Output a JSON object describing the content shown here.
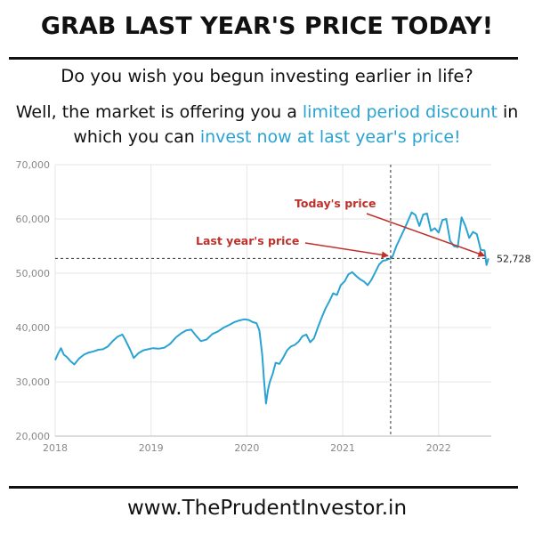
{
  "header": {
    "title": "GRAB LAST YEAR'S PRICE TODAY!",
    "subtitle": "Do you wish you begun investing earlier in life?",
    "intro": {
      "part1": "Well, the market is offering you a ",
      "highlight1": "limited period discount",
      "part2": " in which you can ",
      "highlight2": "invest now at last year's price!"
    }
  },
  "footer": {
    "url": "www.ThePrudentInvestor.in"
  },
  "colors": {
    "line": "#2aa3d2",
    "highlight": "#2aa3d2",
    "annotation": "#c0302a",
    "grid": "#e6e6e6",
    "axis_text": "#888888"
  },
  "chart_data": {
    "type": "line",
    "title": "",
    "xlabel": "",
    "ylabel": "",
    "xlim": [
      2018.0,
      2022.55
    ],
    "ylim": [
      20000,
      70000
    ],
    "x_ticks": [
      "2018",
      "2019",
      "2020",
      "2021",
      "2022"
    ],
    "x_tick_values": [
      2018,
      2019,
      2020,
      2021,
      2022
    ],
    "y_ticks": [
      "20,000",
      "30,000",
      "40,000",
      "50,000",
      "60,000",
      "70,000"
    ],
    "y_tick_values": [
      20000,
      30000,
      40000,
      50000,
      60000,
      70000
    ],
    "grid": true,
    "series": [
      {
        "x": [
          2018.0,
          2018.03,
          2018.06,
          2018.09,
          2018.12,
          2018.16,
          2018.2,
          2018.25,
          2018.3,
          2018.35,
          2018.4,
          2018.45,
          2018.5,
          2018.55,
          2018.6,
          2018.65,
          2018.7,
          2018.73,
          2018.78,
          2018.82,
          2018.87,
          2018.92,
          2018.97,
          2019.02,
          2019.08,
          2019.14,
          2019.2,
          2019.26,
          2019.32,
          2019.37,
          2019.42,
          2019.47,
          2019.52,
          2019.58,
          2019.64,
          2019.7,
          2019.76,
          2019.82,
          2019.87,
          2019.92,
          2019.97,
          2020.02,
          2020.06,
          2020.1,
          2020.13,
          2020.16,
          2020.18,
          2020.2,
          2020.22,
          2020.24,
          2020.27,
          2020.3,
          2020.34,
          2020.38,
          2020.42,
          2020.46,
          2020.5,
          2020.54,
          2020.58,
          2020.62,
          2020.66,
          2020.7,
          2020.74,
          2020.78,
          2020.82,
          2020.86,
          2020.9,
          2020.94,
          2020.98,
          2021.02,
          2021.06,
          2021.1,
          2021.14,
          2021.18,
          2021.22,
          2021.26,
          2021.3,
          2021.34,
          2021.38,
          2021.42,
          2021.45,
          2021.48,
          2021.5,
          2021.52,
          2021.56,
          2021.6,
          2021.64,
          2021.68,
          2021.72,
          2021.76,
          2021.8,
          2021.84,
          2021.88,
          2021.92,
          2021.96,
          2022.0,
          2022.04,
          2022.08,
          2022.12,
          2022.16,
          2022.2,
          2022.24,
          2022.28,
          2022.32,
          2022.36,
          2022.4,
          2022.44,
          2022.48,
          2022.5,
          2022.52
        ],
        "values": [
          34000,
          35200,
          36200,
          35000,
          34600,
          33800,
          33200,
          34300,
          35000,
          35400,
          35600,
          35900,
          36000,
          36500,
          37500,
          38300,
          38700,
          37800,
          36000,
          34400,
          35300,
          35800,
          36000,
          36200,
          36100,
          36300,
          37000,
          38200,
          39000,
          39500,
          39600,
          38500,
          37500,
          37800,
          38800,
          39300,
          40000,
          40500,
          41000,
          41300,
          41500,
          41400,
          41000,
          40800,
          39500,
          35000,
          30000,
          26000,
          28500,
          30000,
          31500,
          33500,
          33300,
          34500,
          35800,
          36500,
          36800,
          37400,
          38400,
          38700,
          37300,
          38000,
          40000,
          41800,
          43500,
          44800,
          46300,
          46000,
          47800,
          48500,
          49800,
          50200,
          49500,
          48900,
          48500,
          47800,
          48800,
          50200,
          51600,
          52300,
          52400,
          52600,
          52700,
          53100,
          55000,
          56500,
          58000,
          59600,
          61200,
          60700,
          58700,
          60800,
          61000,
          57800,
          58300,
          57500,
          59800,
          60000,
          56000,
          55000,
          54800,
          60300,
          58700,
          56500,
          57600,
          57200,
          54300,
          54200,
          51500,
          52728
        ]
      }
    ],
    "annotations": {
      "todays_price_label": "Today's price",
      "last_year_price_label": "Last year's price",
      "value_label": "52,728",
      "reference_value": 52728,
      "marker_x": 2021.5
    }
  }
}
